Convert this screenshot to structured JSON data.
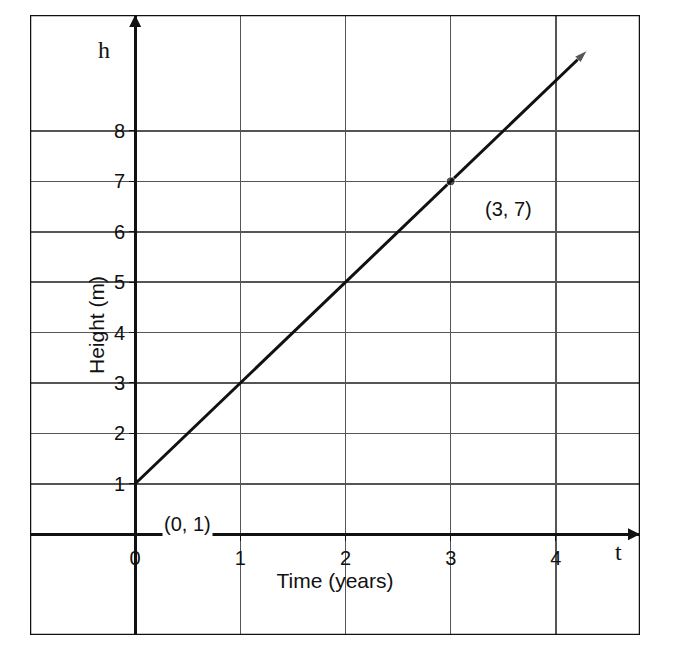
{
  "chart_data": {
    "type": "line",
    "x_label": "Time (years)",
    "y_label": "Height (m)",
    "x": [
      0,
      3,
      4.3
    ],
    "values": [
      1,
      7,
      9.6
    ],
    "color": "#111111",
    "marker": "circle",
    "xlim": [
      -1,
      4.8
    ],
    "ylim": [
      -2,
      10.3
    ],
    "xticks": [
      0,
      1,
      2,
      3,
      4
    ],
    "yticks": [
      1,
      2,
      3,
      4,
      5,
      6,
      7,
      8
    ],
    "grid": true,
    "annotations": [
      {
        "text": "(0, 1)",
        "x": 0.5,
        "y": 0.2
      },
      {
        "text": "(3, 7)",
        "x": 3.55,
        "y": 6.45
      },
      {
        "text": "h",
        "x": -0.3,
        "y": 9.6
      },
      {
        "text": "t",
        "x": 4.6,
        "y": -0.35
      }
    ]
  }
}
